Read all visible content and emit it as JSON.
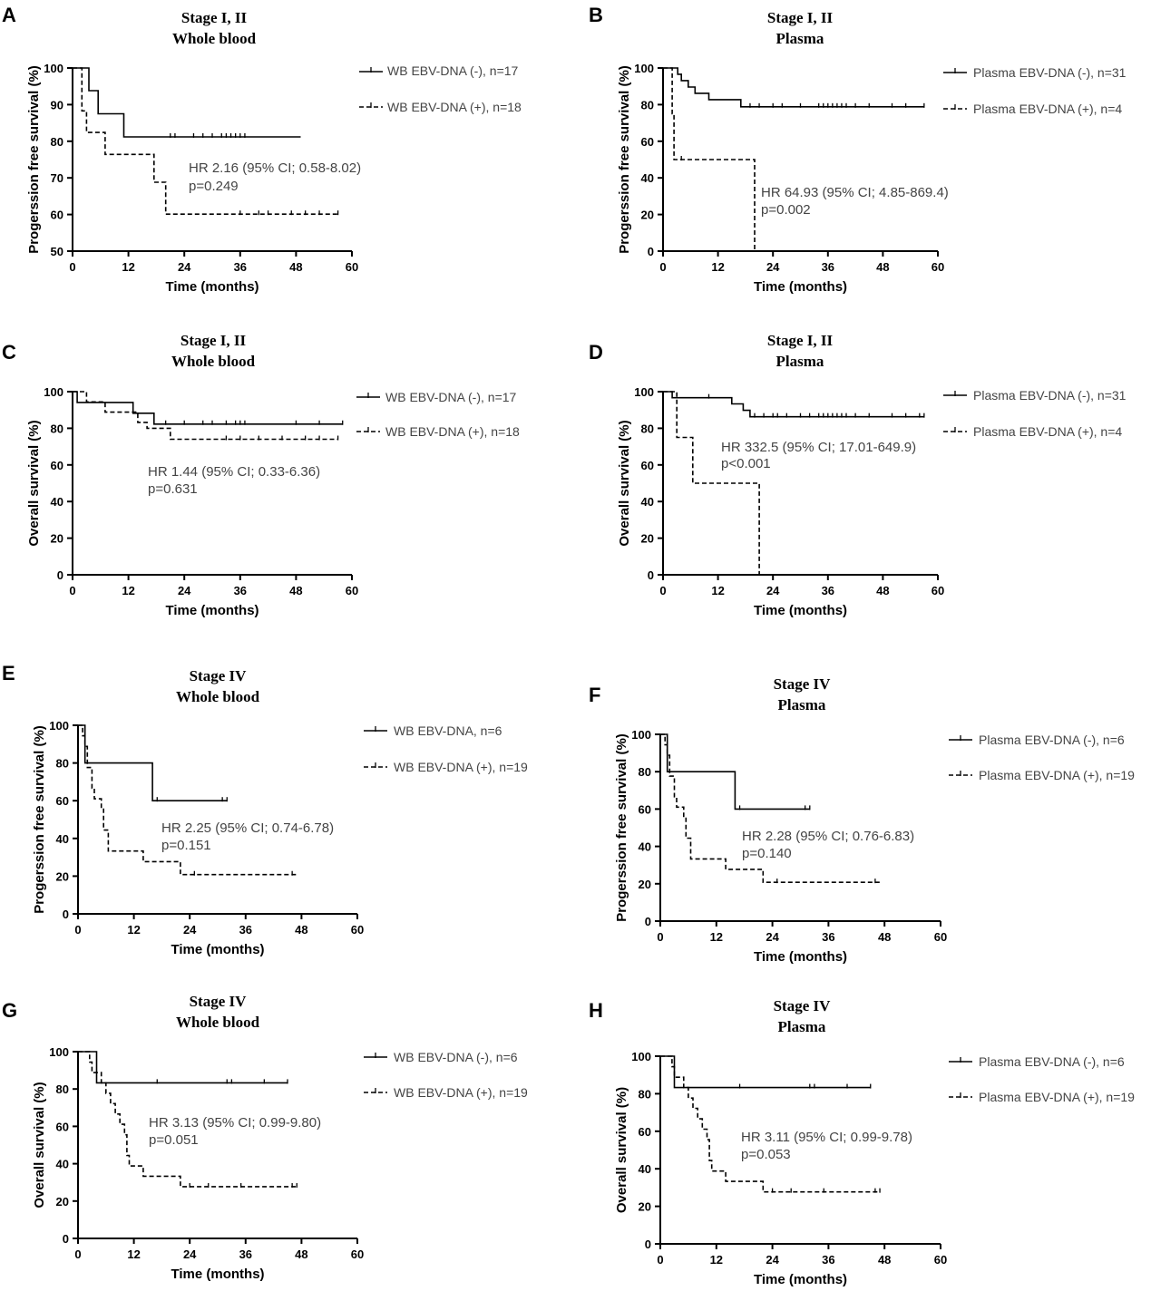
{
  "chart_data": [
    {
      "type": "line",
      "subtype": "kaplan-meier",
      "panel": "A",
      "title": "Stage I, II",
      "subtitle": "Whole blood",
      "xlabel": "Time (months)",
      "ylabel": "Progerssion free survival (%)",
      "xlim": [
        0,
        60
      ],
      "ylim": [
        50,
        100
      ],
      "xticks": [
        "0",
        "12",
        "24",
        "36",
        "48",
        "60"
      ],
      "yticks": [
        "50",
        "60",
        "70",
        "80",
        "90",
        "100"
      ],
      "series": [
        {
          "name": "WB EBV-DNA (-), n=17",
          "style": "solid",
          "steps": [
            [
              0,
              100
            ],
            [
              3.5,
              93.8
            ],
            [
              5.5,
              87.5
            ],
            [
              11,
              81.2
            ],
            [
              49,
              81.2
            ]
          ],
          "censors": [
            21,
            22,
            26,
            28,
            30,
            32,
            33,
            34,
            35,
            36,
            37
          ]
        },
        {
          "name": "WB EBV-DNA (+), n=18",
          "style": "dashed",
          "steps": [
            [
              0,
              100
            ],
            [
              2,
              88.3
            ],
            [
              3,
              82.4
            ],
            [
              7,
              76.4
            ],
            [
              17.5,
              68.8
            ],
            [
              20,
              60.1
            ],
            [
              57,
              60.1
            ]
          ],
          "censors": [
            36,
            40,
            42,
            47,
            50,
            53,
            57
          ]
        }
      ],
      "annotation": [
        "HR 2.16 (95% CI; 0.58-8.02)",
        "p=0.249"
      ]
    },
    {
      "type": "line",
      "subtype": "kaplan-meier",
      "panel": "B",
      "title": "Stage I, II",
      "subtitle": "Plasma",
      "xlabel": "Time (months)",
      "ylabel": "Progerssion free survival (%)",
      "xlim": [
        0,
        60
      ],
      "ylim": [
        0,
        100
      ],
      "xticks": [
        "0",
        "12",
        "24",
        "36",
        "48",
        "60"
      ],
      "yticks": [
        "0",
        "20",
        "40",
        "60",
        "80",
        "100"
      ],
      "series": [
        {
          "name": "Plasma EBV-DNA (-), n=31",
          "style": "solid",
          "steps": [
            [
              0,
              100
            ],
            [
              3.2,
              96.6
            ],
            [
              4,
              93.1
            ],
            [
              5.5,
              89.6
            ],
            [
              7,
              86.2
            ],
            [
              10,
              82.7
            ],
            [
              17,
              78.8
            ],
            [
              57,
              78.8
            ]
          ],
          "censors": [
            19,
            21,
            24,
            26,
            30,
            34,
            35,
            36,
            37,
            38,
            39,
            40,
            42,
            45,
            50,
            53,
            57
          ]
        },
        {
          "name": "Plasma EBV-DNA (+), n=4",
          "style": "dashed",
          "steps": [
            [
              0,
              100
            ],
            [
              2,
              75
            ],
            [
              2.4,
              50
            ],
            [
              20,
              0
            ],
            [
              20.1,
              0
            ]
          ],
          "censors": [
            4
          ]
        }
      ],
      "annotation": [
        "HR 64.93 (95% CI; 4.85-869.4)",
        "p=0.002"
      ]
    },
    {
      "type": "line",
      "subtype": "kaplan-meier",
      "panel": "C",
      "title": "Stage I, II",
      "subtitle": "Whole blood",
      "xlabel": "Time (months)",
      "ylabel": "Overall survival (%)",
      "xlim": [
        0,
        60
      ],
      "ylim": [
        0,
        100
      ],
      "xticks": [
        "0",
        "12",
        "24",
        "36",
        "48",
        "60"
      ],
      "yticks": [
        "0",
        "20",
        "40",
        "60",
        "80",
        "100"
      ],
      "series": [
        {
          "name": "WB EBV-DNA (-), n=17",
          "style": "solid",
          "steps": [
            [
              0,
              100
            ],
            [
              1,
              94.1
            ],
            [
              13,
              88.2
            ],
            [
              17.5,
              82.3
            ],
            [
              58,
              82.3
            ]
          ],
          "censors": [
            20,
            24,
            28,
            30,
            33,
            35,
            36,
            37,
            48,
            53,
            58
          ]
        },
        {
          "name": "WB EBV-DNA (+), n=18",
          "style": "dashed",
          "steps": [
            [
              0,
              100
            ],
            [
              3,
              94.4
            ],
            [
              7,
              88.8
            ],
            [
              14,
              83.2
            ],
            [
              16,
              80
            ],
            [
              21,
              74
            ],
            [
              57,
              74
            ]
          ],
          "censors": [
            33,
            36,
            40,
            45,
            50,
            53,
            57
          ]
        }
      ],
      "annotation": [
        "HR 1.44 (95%  CI; 0.33-6.36)",
        "p=0.631"
      ]
    },
    {
      "type": "line",
      "subtype": "kaplan-meier",
      "panel": "D",
      "title": "Stage I, II",
      "subtitle": "Plasma",
      "xlabel": "Time (months)",
      "ylabel": "Overall survival (%)",
      "xlim": [
        0,
        60
      ],
      "ylim": [
        0,
        100
      ],
      "xticks": [
        "0",
        "12",
        "24",
        "36",
        "48",
        "60"
      ],
      "yticks": [
        "0",
        "20",
        "40",
        "60",
        "80",
        "100"
      ],
      "series": [
        {
          "name": "Plasma EBV-DNA (-), n=31",
          "style": "solid",
          "steps": [
            [
              0,
              100
            ],
            [
              2,
              96.7
            ],
            [
              15,
              93.3
            ],
            [
              17.5,
              89.8
            ],
            [
              19,
              86.3
            ],
            [
              57,
              86.3
            ]
          ],
          "censors": [
            10,
            20,
            22,
            24,
            25,
            27,
            30,
            32,
            34,
            35,
            36,
            37,
            38,
            39,
            40,
            42,
            45,
            50,
            53,
            56,
            57
          ]
        },
        {
          "name": "Plasma EBV-DNA (+), n=4",
          "style": "dashed",
          "steps": [
            [
              0,
              100
            ],
            [
              3,
              75
            ],
            [
              6.5,
              50
            ],
            [
              21,
              0
            ],
            [
              21.1,
              0
            ]
          ],
          "censors": []
        }
      ],
      "annotation": [
        "HR 332.5 (95% CI; 17.01-649.9)",
        "p<0.001"
      ]
    },
    {
      "type": "line",
      "subtype": "kaplan-meier",
      "panel": "E",
      "title": "Stage IV",
      "subtitle": "Whole blood",
      "xlabel": "Time (months)",
      "ylabel": "Progerssion free survival (%)",
      "xlim": [
        0,
        60
      ],
      "ylim": [
        0,
        100
      ],
      "xticks": [
        "0",
        "12",
        "24",
        "36",
        "48",
        "60"
      ],
      "yticks": [
        "0",
        "20",
        "40",
        "60",
        "80",
        "100"
      ],
      "series": [
        {
          "name": "WB EBV-DNA, n=6",
          "style": "solid",
          "steps": [
            [
              0,
              100
            ],
            [
              1.5,
              80
            ],
            [
              16,
              60
            ],
            [
              32,
              60
            ]
          ],
          "censors": [
            17,
            31,
            32
          ]
        },
        {
          "name": "WB EBV-DNA (+), n=19",
          "style": "dashed",
          "steps": [
            [
              0,
              100
            ],
            [
              1,
              94.4
            ],
            [
              1.5,
              88.8
            ],
            [
              2,
              77.6
            ],
            [
              3,
              66.6
            ],
            [
              3.5,
              61
            ],
            [
              5,
              55.5
            ],
            [
              5.5,
              44.4
            ],
            [
              6.5,
              33.3
            ],
            [
              14,
              27.7
            ],
            [
              22,
              20.8
            ],
            [
              47,
              20.8
            ]
          ],
          "censors": [
            25,
            46
          ]
        }
      ],
      "annotation": [
        "HR 2.25 (95% CI; 0.74-6.78)",
        "p=0.151"
      ]
    },
    {
      "type": "line",
      "subtype": "kaplan-meier",
      "panel": "F",
      "title": "Stage IV",
      "subtitle": "Plasma",
      "xlabel": "Time (months)",
      "ylabel": "Progerssion free survival (%)",
      "xlim": [
        0,
        60
      ],
      "ylim": [
        0,
        100
      ],
      "xticks": [
        "0",
        "12",
        "24",
        "36",
        "48",
        "60"
      ],
      "yticks": [
        "0",
        "20",
        "40",
        "60",
        "80",
        "100"
      ],
      "series": [
        {
          "name": "Plasma EBV-DNA (-), n=6",
          "style": "solid",
          "steps": [
            [
              0,
              100
            ],
            [
              1.5,
              80
            ],
            [
              16,
              60
            ],
            [
              32,
              60
            ]
          ],
          "censors": [
            17,
            31,
            32
          ]
        },
        {
          "name": "Plasma EBV-DNA (+), n=19",
          "style": "dashed",
          "steps": [
            [
              0,
              100
            ],
            [
              1,
              94.4
            ],
            [
              1.5,
              88.8
            ],
            [
              2,
              77.6
            ],
            [
              3,
              66.6
            ],
            [
              3.5,
              61
            ],
            [
              5,
              55.5
            ],
            [
              5.5,
              44.4
            ],
            [
              6.5,
              33.3
            ],
            [
              14,
              27.7
            ],
            [
              22,
              20.8
            ],
            [
              47,
              20.8
            ]
          ],
          "censors": [
            25,
            46
          ]
        }
      ],
      "annotation": [
        "HR 2.28 (95% CI; 0.76-6.83)",
        "p=0.140"
      ]
    },
    {
      "type": "line",
      "subtype": "kaplan-meier",
      "panel": "G",
      "title": "Stage IV",
      "subtitle": "Whole blood",
      "xlabel": "Time (months)",
      "ylabel": "Overall survival (%)",
      "xlim": [
        0,
        60
      ],
      "ylim": [
        0,
        100
      ],
      "xticks": [
        "0",
        "12",
        "24",
        "36",
        "48",
        "60"
      ],
      "yticks": [
        "0",
        "20",
        "40",
        "60",
        "80",
        "100"
      ],
      "series": [
        {
          "name": "WB EBV-DNA (-), n=6",
          "style": "solid",
          "steps": [
            [
              0,
              100
            ],
            [
              4,
              83.3
            ],
            [
              45,
              83.3
            ]
          ],
          "censors": [
            17,
            32,
            33,
            40,
            45
          ]
        },
        {
          "name": "WB EBV-DNA (+), n=19",
          "style": "dashed",
          "steps": [
            [
              0,
              100
            ],
            [
              2.5,
              94.4
            ],
            [
              3,
              88.8
            ],
            [
              5,
              83.3
            ],
            [
              6,
              77.7
            ],
            [
              7,
              72.2
            ],
            [
              8,
              66.6
            ],
            [
              9,
              61.1
            ],
            [
              10,
              55.5
            ],
            [
              10.5,
              44.4
            ],
            [
              11,
              38.8
            ],
            [
              14,
              33.3
            ],
            [
              22,
              27.7
            ],
            [
              47,
              27.7
            ]
          ],
          "censors": [
            24,
            28,
            35,
            46,
            47
          ]
        }
      ],
      "annotation": [
        "HR 3.13 (95% CI; 0.99-9.80)",
        "p=0.051"
      ]
    },
    {
      "type": "line",
      "subtype": "kaplan-meier",
      "panel": "H",
      "title": "Stage IV",
      "subtitle": "Plasma",
      "xlabel": "Time (months)",
      "ylabel": "Overall survival (%)",
      "xlim": [
        0,
        60
      ],
      "ylim": [
        0,
        100
      ],
      "xticks": [
        "0",
        "12",
        "24",
        "36",
        "48",
        "60"
      ],
      "yticks": [
        "0",
        "20",
        "40",
        "60",
        "80",
        "100"
      ],
      "series": [
        {
          "name": "Plasma EBV-DNA (-), n=6",
          "style": "solid",
          "steps": [
            [
              0,
              100
            ],
            [
              3,
              83.3
            ],
            [
              45,
              83.3
            ]
          ],
          "censors": [
            17,
            32,
            33,
            40,
            45
          ]
        },
        {
          "name": "Plasma EBV-DNA (+), n=19",
          "style": "dashed",
          "steps": [
            [
              0,
              100
            ],
            [
              2.5,
              94.4
            ],
            [
              3,
              88.8
            ],
            [
              5,
              83.3
            ],
            [
              6,
              77.7
            ],
            [
              7,
              72.2
            ],
            [
              8,
              66.6
            ],
            [
              9,
              61.1
            ],
            [
              10,
              55.5
            ],
            [
              10.5,
              44.4
            ],
            [
              11,
              38.8
            ],
            [
              14,
              33.3
            ],
            [
              22,
              27.7
            ],
            [
              47,
              27.7
            ]
          ],
          "censors": [
            24,
            28,
            35,
            46,
            47
          ]
        }
      ],
      "annotation": [
        "HR 3.11 (95% CI; 0.99-9.78)",
        "p=0.053"
      ]
    }
  ]
}
